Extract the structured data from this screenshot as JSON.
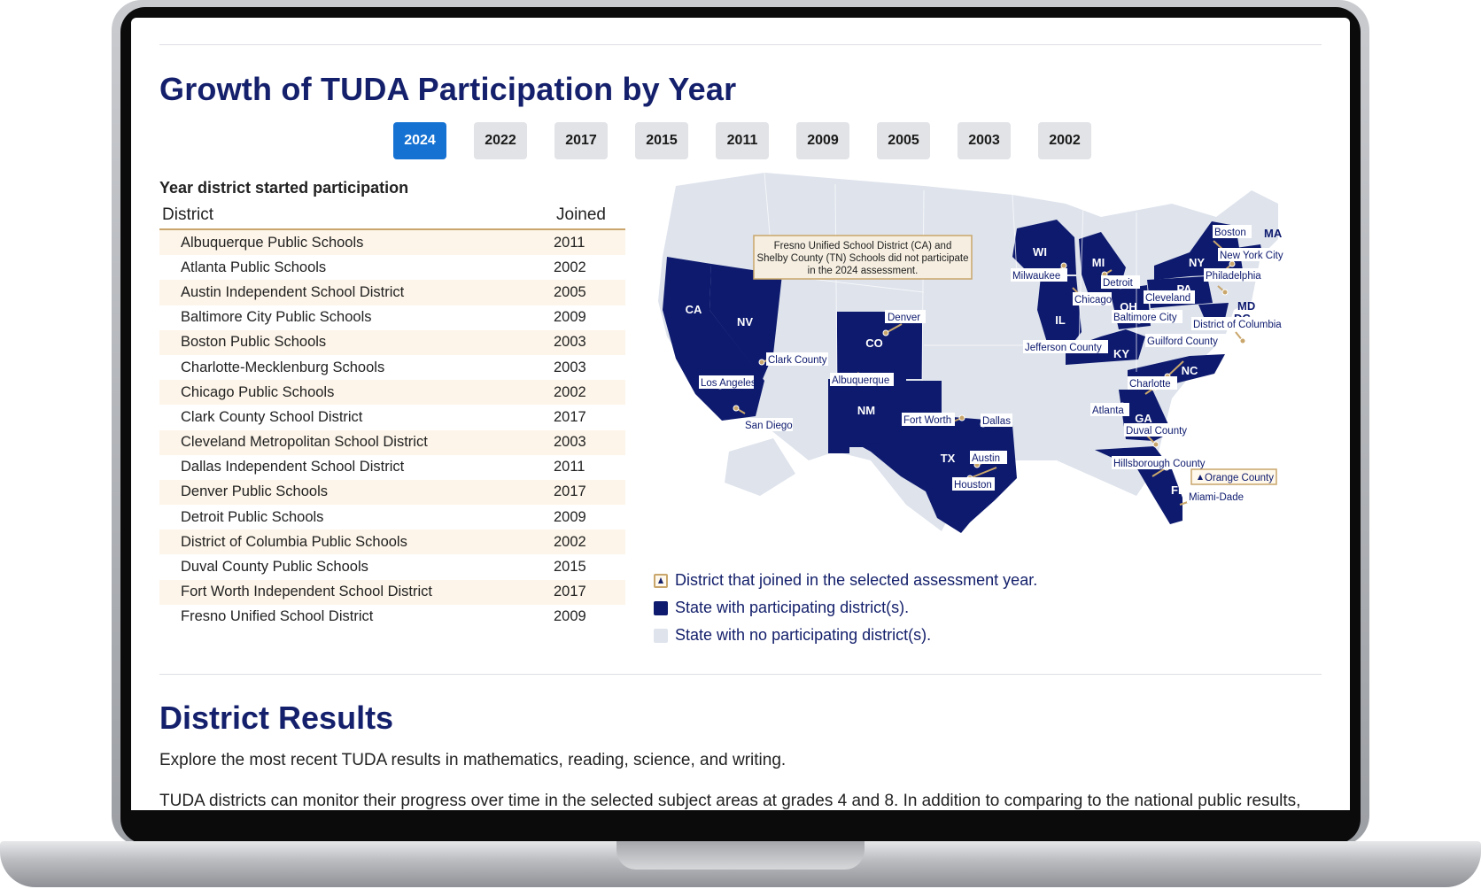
{
  "header": {
    "title": "Growth of TUDA Participation by Year"
  },
  "year_tabs": {
    "selected": "2024",
    "items": [
      "2024",
      "2022",
      "2017",
      "2015",
      "2011",
      "2009",
      "2005",
      "2003",
      "2002"
    ]
  },
  "table": {
    "caption": "Year district started participation",
    "col_district": "District",
    "col_joined": "Joined",
    "rows": [
      {
        "district": "Albuquerque Public Schools",
        "joined": "2011"
      },
      {
        "district": "Atlanta Public Schools",
        "joined": "2002"
      },
      {
        "district": "Austin Independent School District",
        "joined": "2005"
      },
      {
        "district": "Baltimore City Public Schools",
        "joined": "2009"
      },
      {
        "district": "Boston Public Schools",
        "joined": "2003"
      },
      {
        "district": "Charlotte-Mecklenburg Schools",
        "joined": "2003"
      },
      {
        "district": "Chicago Public Schools",
        "joined": "2002"
      },
      {
        "district": "Clark County School District",
        "joined": "2017"
      },
      {
        "district": "Cleveland Metropolitan School District",
        "joined": "2003"
      },
      {
        "district": "Dallas Independent School District",
        "joined": "2011"
      },
      {
        "district": "Denver Public Schools",
        "joined": "2017"
      },
      {
        "district": "Detroit Public Schools",
        "joined": "2009"
      },
      {
        "district": "District of Columbia Public Schools",
        "joined": "2002"
      },
      {
        "district": "Duval County Public Schools",
        "joined": "2015"
      },
      {
        "district": "Fort Worth Independent School District",
        "joined": "2017"
      },
      {
        "district": "Fresno Unified School District",
        "joined": "2009"
      }
    ]
  },
  "map": {
    "note": [
      "Fresno Unified School District (CA) and",
      "Shelby County (TN) Schools did not participate",
      "in the 2024 assessment."
    ],
    "states": [
      "CA",
      "NV",
      "CO",
      "NM",
      "TX",
      "WI",
      "MI",
      "IL",
      "OH",
      "KY",
      "NY",
      "PA",
      "MA",
      "MD",
      "DC",
      "NC",
      "GA",
      "FL"
    ],
    "cities": [
      "Los Angeles",
      "San Diego",
      "Clark County",
      "Denver",
      "Albuquerque",
      "Fort Worth",
      "Dallas",
      "Austin",
      "Houston",
      "Milwaukee",
      "Chicago",
      "Detroit",
      "Cleveland",
      "Baltimore City",
      "Jefferson County",
      "Boston",
      "New York City",
      "Philadelphia",
      "District of Columbia",
      "Guilford County",
      "Charlotte",
      "Atlanta",
      "Duval County",
      "Hillsborough County",
      "Orange County",
      "Miami-Dade"
    ],
    "highlight_city": "Orange County",
    "colors": {
      "participating": "#0d1a6e",
      "none": "#dee3ec",
      "accent": "#c9a66b",
      "label_bg": "#ffffff",
      "note_bg": "#f6efe1"
    }
  },
  "legend": {
    "joined": "District that joined in the selected assessment year.",
    "participating": "State with participating district(s).",
    "none": "State with no participating district(s)."
  },
  "results": {
    "title": "District Results",
    "p1": "Explore the most recent TUDA results in mathematics, reading, science, and writing.",
    "p2": "TUDA districts can monitor their progress over time in the selected subject areas at grades 4 and 8. In addition to comparing to the national public results,"
  }
}
